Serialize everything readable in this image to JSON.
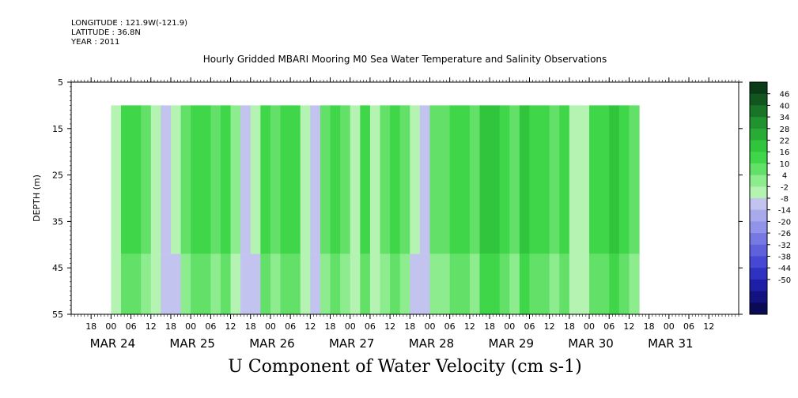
{
  "meta": {
    "longitude": "LONGITUDE : 121.9W(-121.9)",
    "latitude": "LATITUDE : 36.8N",
    "year": "YEAR : 2011"
  },
  "chart_data": {
    "type": "heatmap",
    "title": "Hourly Gridded MBARI Mooring M0 Sea Water Temperature and Salinity Observations",
    "xlabel": "U Component of Water Velocity (cm s-1)",
    "ylabel": "DEPTH (m)",
    "yticks": [
      5,
      15,
      25,
      35,
      45,
      55
    ],
    "ylim": [
      5,
      55
    ],
    "y_inverted": true,
    "hour_tick_labels": [
      "18",
      "00",
      "06",
      "12",
      "18",
      "00",
      "06",
      "12",
      "18",
      "00",
      "06",
      "12",
      "18",
      "00",
      "06",
      "12",
      "18",
      "00",
      "06",
      "12",
      "18",
      "00",
      "06",
      "12",
      "18",
      "00",
      "06",
      "12",
      "18",
      "00",
      "06",
      "12"
    ],
    "date_labels": [
      "MAR 24",
      "MAR 25",
      "MAR 26",
      "MAR 27",
      "MAR 28",
      "MAR 29",
      "MAR 30",
      "MAR 31"
    ],
    "data_depth_range": [
      10,
      55
    ],
    "colorbar_levels": [
      46,
      40,
      34,
      28,
      22,
      16,
      10,
      4,
      -2,
      -8,
      -14,
      -20,
      -26,
      -32,
      -38,
      -44,
      -50
    ],
    "colorbar_colors": [
      "#0a3a16",
      "#12561f",
      "#1a7428",
      "#229130",
      "#29ab37",
      "#31c43d",
      "#40d64a",
      "#62e068",
      "#8cec8e",
      "#b5f3b3",
      "#c2c3ee",
      "#a9aaec",
      "#9194e8",
      "#7779e2",
      "#5e61db",
      "#4548d2",
      "#2f31c2",
      "#1d1fa6",
      "#121380",
      "#0a0a55"
    ],
    "column_values": [
      {
        "hour": 0,
        "u": -4
      },
      {
        "hour": 3,
        "u": 10
      },
      {
        "hour": 6,
        "u": 14
      },
      {
        "hour": 9,
        "u": 8
      },
      {
        "hour": 12,
        "u": -6
      },
      {
        "hour": 15,
        "u": -10
      },
      {
        "hour": 18,
        "u": -8
      },
      {
        "hour": 21,
        "u": 8
      },
      {
        "hour": 24,
        "u": 14
      },
      {
        "hour": 27,
        "u": 10
      },
      {
        "hour": 30,
        "u": 6
      },
      {
        "hour": 33,
        "u": 12
      },
      {
        "hour": 36,
        "u": -2
      },
      {
        "hour": 39,
        "u": -10
      },
      {
        "hour": 42,
        "u": -8
      },
      {
        "hour": 45,
        "u": 10
      },
      {
        "hour": 48,
        "u": 6
      },
      {
        "hour": 51,
        "u": 12
      },
      {
        "hour": 54,
        "u": 14
      },
      {
        "hour": 57,
        "u": -6
      },
      {
        "hour": 60,
        "u": -10
      },
      {
        "hour": 63,
        "u": 6
      },
      {
        "hour": 66,
        "u": 12
      },
      {
        "hour": 69,
        "u": 6
      },
      {
        "hour": 72,
        "u": -4
      },
      {
        "hour": 75,
        "u": 10
      },
      {
        "hour": 78,
        "u": -6
      },
      {
        "hour": 81,
        "u": 8
      },
      {
        "hour": 84,
        "u": 12
      },
      {
        "hour": 87,
        "u": 6
      },
      {
        "hour": 90,
        "u": -8
      },
      {
        "hour": 93,
        "u": -10
      },
      {
        "hour": 96,
        "u": 4
      },
      {
        "hour": 99,
        "u": 8
      },
      {
        "hour": 102,
        "u": 14
      },
      {
        "hour": 105,
        "u": 10
      },
      {
        "hour": 108,
        "u": 6
      },
      {
        "hour": 111,
        "u": 16
      },
      {
        "hour": 114,
        "u": 20
      },
      {
        "hour": 117,
        "u": 14
      },
      {
        "hour": 120,
        "u": 8
      },
      {
        "hour": 123,
        "u": 16
      },
      {
        "hour": 126,
        "u": 10
      },
      {
        "hour": 129,
        "u": 14
      },
      {
        "hour": 132,
        "u": 8
      },
      {
        "hour": 135,
        "u": 12
      },
      {
        "hour": 138,
        "u": -6
      },
      {
        "hour": 141,
        "u": -4
      },
      {
        "hour": 144,
        "u": 10
      },
      {
        "hour": 147,
        "u": 14
      },
      {
        "hour": 150,
        "u": 18
      },
      {
        "hour": 153,
        "u": 12
      },
      {
        "hour": 156,
        "u": 8
      }
    ]
  }
}
